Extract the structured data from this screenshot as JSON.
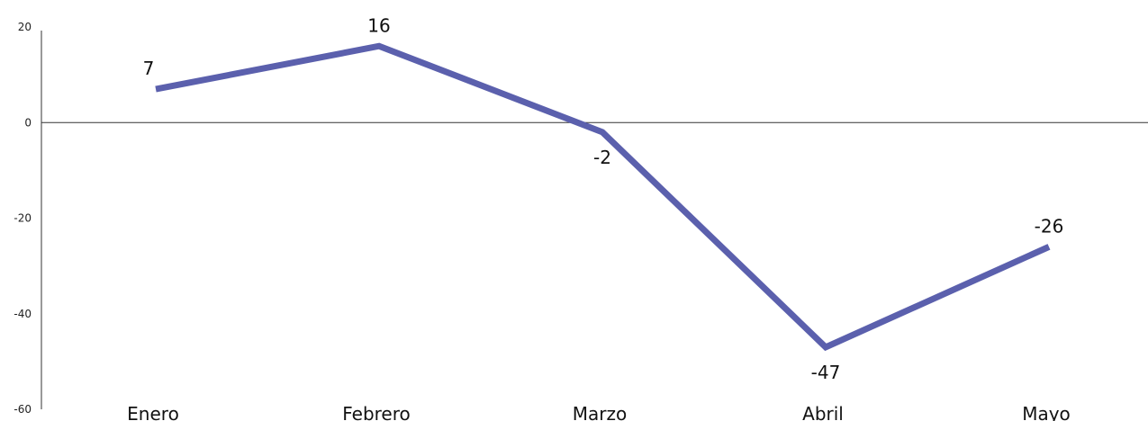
{
  "chart_data": {
    "type": "line",
    "categories": [
      "Enero",
      "Febrero",
      "Marzo",
      "Abril",
      "Mayo"
    ],
    "series": [
      {
        "values": [
          7,
          16,
          -2,
          -47,
          -26
        ]
      }
    ],
    "data_labels": [
      "7",
      "16",
      "-2",
      "-47",
      "-26"
    ],
    "y_ticks": [
      20,
      0,
      -20,
      -40,
      -60
    ],
    "y_tick_labels": [
      "20",
      "0",
      "-20",
      "-40",
      "-60"
    ],
    "ylim": [
      -60,
      20
    ],
    "title": "",
    "xlabel": "",
    "ylabel": "",
    "grid": false,
    "line_color": "#5b60ad"
  }
}
